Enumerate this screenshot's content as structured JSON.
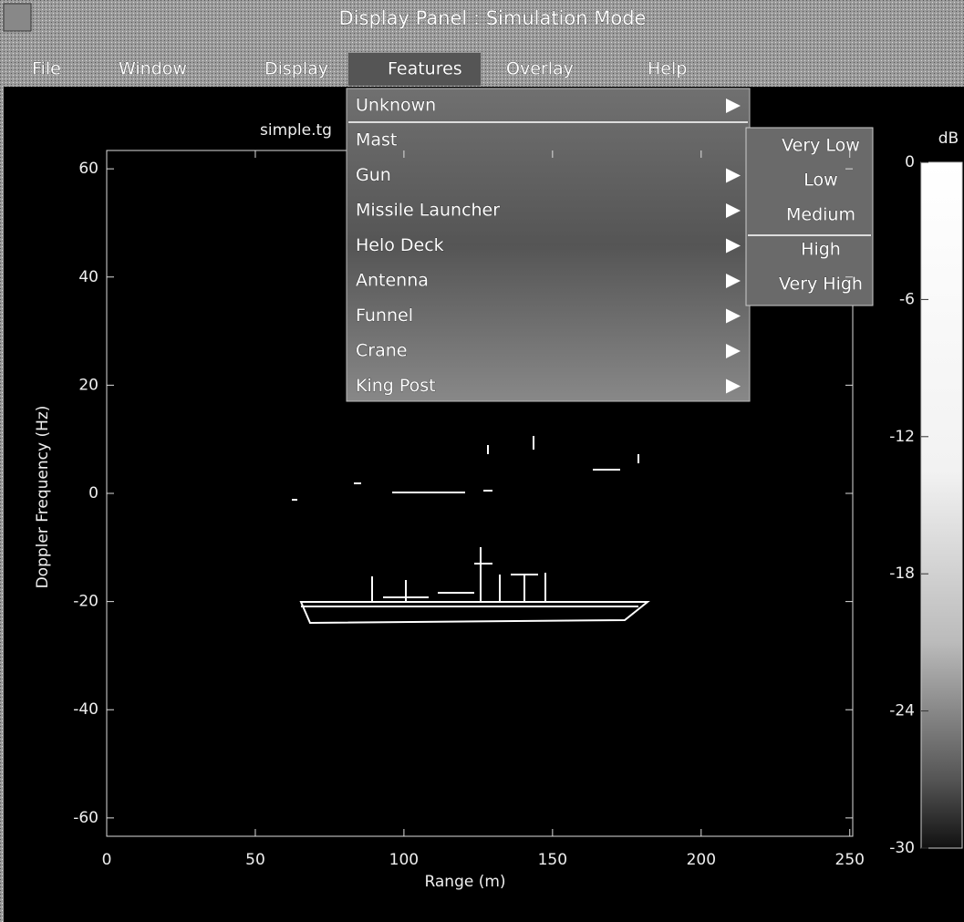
{
  "window": {
    "title": "Display Panel : Simulation Mode"
  },
  "menu_bar": [
    "File",
    "Window",
    "Display",
    "Features",
    "Overlay",
    "Help"
  ],
  "features_menu": [
    "Unknown",
    "Mast",
    "Gun",
    "Missile Launcher",
    "Helo Deck",
    "Antenna",
    "Funnel",
    "Crane",
    "King Post"
  ],
  "submenu": [
    "Very Low",
    "Low",
    "Medium",
    "High",
    "Very High"
  ],
  "plot": {
    "title": "simple.tg",
    "xlabel": "Range  (m)",
    "ylabel": "Doppler Frequency  (Hz)",
    "xlim": [
      0,
      251
    ],
    "ylim": [
      -63.4,
      63.4
    ],
    "xticks": [
      0,
      50,
      100,
      150,
      200,
      250
    ],
    "yticks": [
      -60,
      -40,
      -20,
      0,
      20,
      40,
      60
    ]
  },
  "colorbar": {
    "label": "dB",
    "lim": [
      -30,
      0
    ],
    "ticks": [
      0,
      -6,
      -12,
      -18,
      -24,
      -30
    ]
  }
}
